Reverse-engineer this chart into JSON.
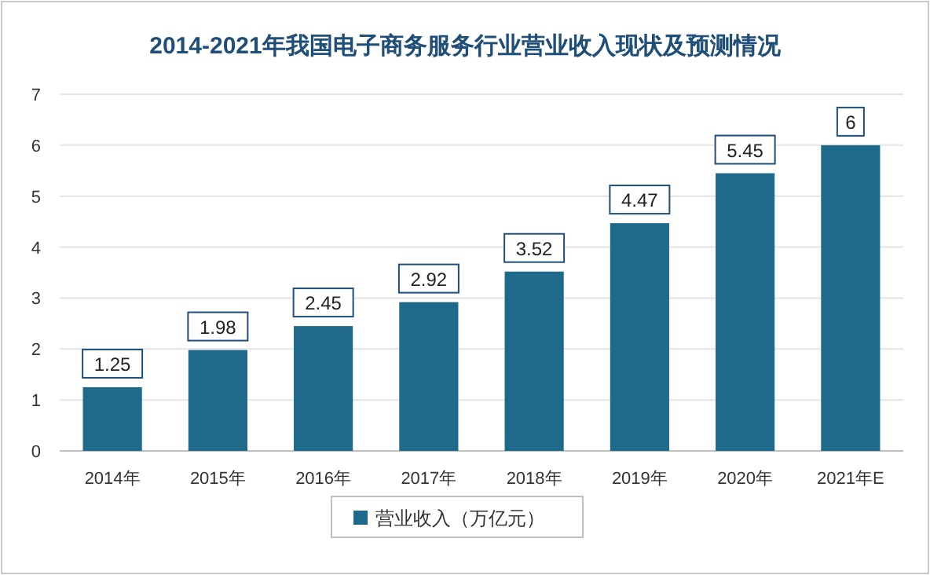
{
  "chart_data": {
    "type": "bar",
    "title": "2014-2021年我国电子商务服务行业营业收入现状及预测情况",
    "categories": [
      "2014年",
      "2015年",
      "2016年",
      "2017年",
      "2018年",
      "2019年",
      "2020年",
      "2021年E"
    ],
    "series": [
      {
        "name": "营业收入（万亿元）",
        "color": "#1f6a8a",
        "values": [
          1.25,
          1.98,
          2.45,
          2.92,
          3.52,
          4.47,
          5.45,
          6
        ]
      }
    ],
    "ylim": [
      0,
      7
    ],
    "yticks": [
      0,
      1,
      2,
      3,
      4,
      5,
      6,
      7
    ],
    "grid": "y",
    "legend": "bottom",
    "data_labels": true
  }
}
